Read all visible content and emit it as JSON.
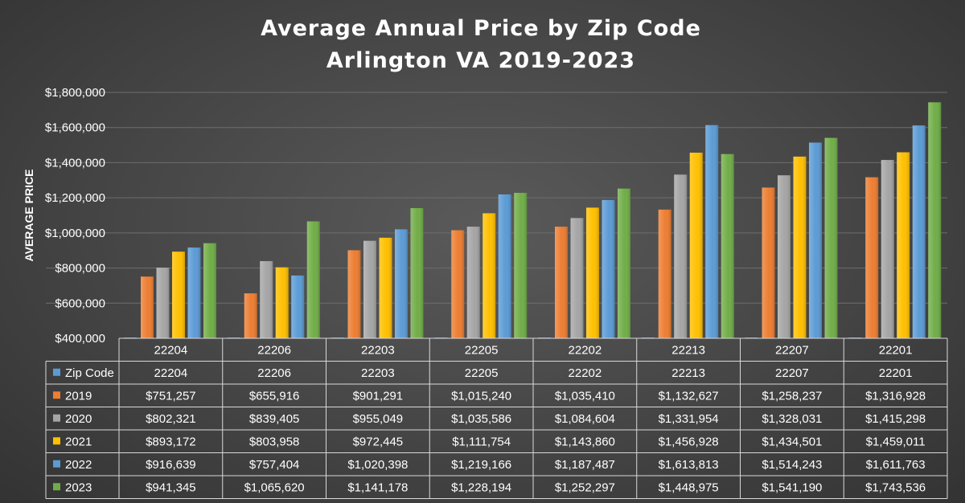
{
  "chart_data": {
    "type": "bar",
    "title": "Average Annual Price by Zip Code",
    "subtitle": "Arlington VA 2019-2023",
    "ylabel": "AVERAGE PRICE",
    "xlabel": "",
    "ylim": [
      400000,
      1800000
    ],
    "yticks": [
      400000,
      600000,
      800000,
      1000000,
      1200000,
      1400000,
      1600000,
      1800000
    ],
    "ytick_labels": [
      "$400,000",
      "$600,000",
      "$800,000",
      "$1,000,000",
      "$1,200,000",
      "$1,400,000",
      "$1,600,000",
      "$1,800,000"
    ],
    "grid": true,
    "legend": "data-table",
    "categories": [
      "22204",
      "22206",
      "22203",
      "22205",
      "22202",
      "22213",
      "22207",
      "22201"
    ],
    "series": [
      {
        "name": "Zip Code",
        "color": "#5b9bd5",
        "values": [
          22204,
          22206,
          22203,
          22205,
          22202,
          22213,
          22207,
          22201
        ],
        "labels": [
          "22204",
          "22206",
          "22203",
          "22205",
          "22202",
          "22213",
          "22207",
          "22201"
        ]
      },
      {
        "name": "2019",
        "color": "#ed7d31",
        "values": [
          751257,
          655916,
          901291,
          1015240,
          1035410,
          1132627,
          1258237,
          1316928
        ],
        "labels": [
          "$751,257",
          "$655,916",
          "$901,291",
          "$1,015,240",
          "$1,035,410",
          "$1,132,627",
          "$1,258,237",
          "$1,316,928"
        ]
      },
      {
        "name": "2020",
        "color": "#a5a5a5",
        "values": [
          802321,
          839405,
          955049,
          1035586,
          1084604,
          1331954,
          1328031,
          1415298
        ],
        "labels": [
          "$802,321",
          "$839,405",
          "$955,049",
          "$1,035,586",
          "$1,084,604",
          "$1,331,954",
          "$1,328,031",
          "$1,415,298"
        ]
      },
      {
        "name": "2021",
        "color": "#ffc000",
        "values": [
          893172,
          803958,
          972445,
          1111754,
          1143860,
          1456928,
          1434501,
          1459011
        ],
        "labels": [
          "$893,172",
          "$803,958",
          "$972,445",
          "$1,111,754",
          "$1,143,860",
          "$1,456,928",
          "$1,434,501",
          "$1,459,011"
        ]
      },
      {
        "name": "2022",
        "color": "#5b9bd5",
        "values": [
          916639,
          757404,
          1020398,
          1219166,
          1187487,
          1613813,
          1514243,
          1611763
        ],
        "labels": [
          "$916,639",
          "$757,404",
          "$1,020,398",
          "$1,219,166",
          "$1,187,487",
          "$1,613,813",
          "$1,514,243",
          "$1,611,763"
        ]
      },
      {
        "name": "2023",
        "color": "#70ad47",
        "values": [
          941345,
          1065620,
          1141178,
          1228194,
          1252297,
          1448975,
          1541190,
          1743536
        ],
        "labels": [
          "$941,345",
          "$1,065,620",
          "$1,141,178",
          "$1,228,194",
          "$1,252,297",
          "$1,448,975",
          "$1,541,190",
          "$1,743,536"
        ]
      }
    ]
  }
}
